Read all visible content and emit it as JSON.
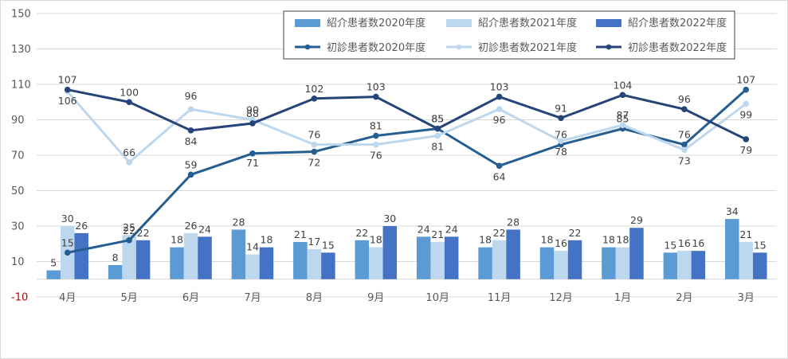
{
  "chart_data": {
    "type": "bar+line",
    "categories": [
      "4月",
      "5月",
      "6月",
      "7月",
      "8月",
      "9月",
      "10月",
      "11月",
      "12月",
      "1月",
      "2月",
      "3月"
    ],
    "ylim": [
      -10,
      150
    ],
    "yticks": [
      "150",
      "130",
      "110",
      "90",
      "70",
      "50",
      "30",
      "10",
      "-10"
    ],
    "grid": true,
    "legend_position": "top-right",
    "bar_series": [
      {
        "name": "紹介患者数2020年度",
        "color": "#5b9bd5",
        "values": [
          5,
          8,
          18,
          28,
          21,
          22,
          24,
          18,
          18,
          18,
          15,
          34
        ]
      },
      {
        "name": "紹介患者数2021年度",
        "color": "#bdd7ee",
        "values": [
          30,
          25,
          26,
          14,
          17,
          18,
          21,
          22,
          16,
          18,
          16,
          21
        ]
      },
      {
        "name": "紹介患者数2022年度",
        "color": "#4472c4",
        "values": [
          26,
          22,
          24,
          18,
          15,
          30,
          24,
          28,
          22,
          29,
          16,
          15
        ]
      }
    ],
    "line_series": [
      {
        "name": "初診患者数2020年度",
        "color": "#255e91",
        "values": [
          15,
          22,
          59,
          71,
          72,
          81,
          85,
          64,
          76,
          85,
          76,
          107
        ]
      },
      {
        "name": "初診患者数2021年度",
        "color": "#bdd7ee",
        "values": [
          106,
          66,
          96,
          90,
          76,
          76,
          81,
          96,
          78,
          87,
          73,
          99
        ]
      },
      {
        "name": "初診患者数2022年度",
        "color": "#264478",
        "values": [
          107,
          100,
          84,
          88,
          102,
          103,
          85,
          103,
          91,
          104,
          96,
          79
        ]
      }
    ]
  }
}
